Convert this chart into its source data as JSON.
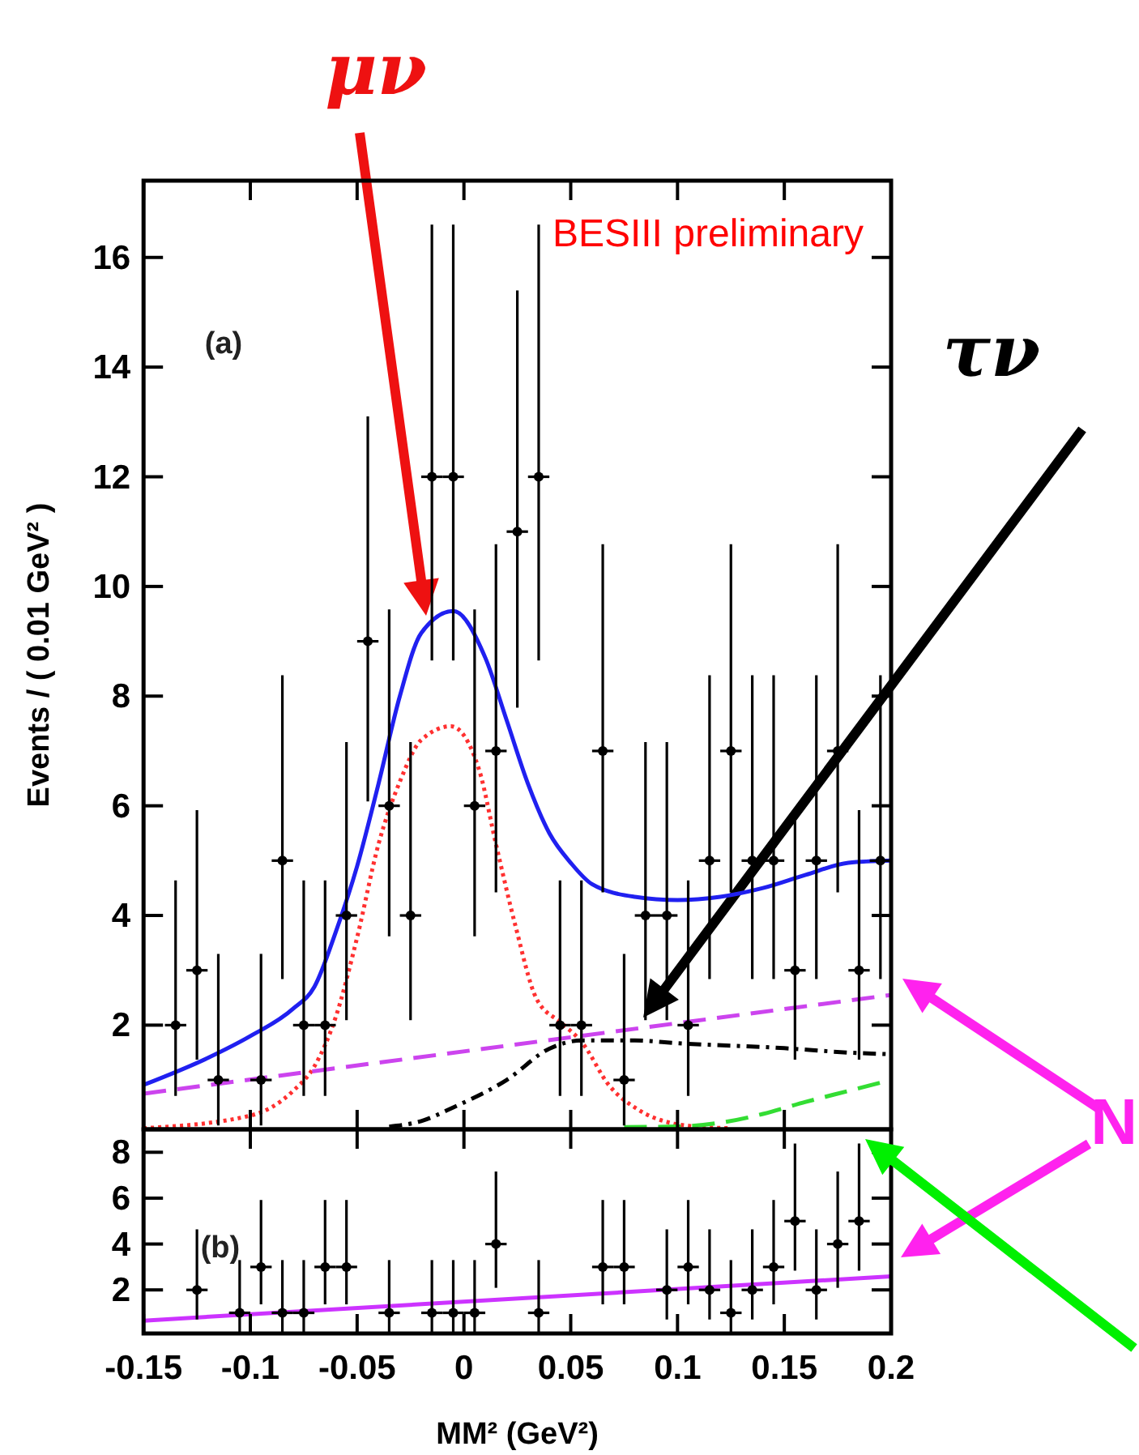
{
  "chart_data": [
    {
      "type": "scatter",
      "ylabel": "Events / ( 0.01 GeV² )",
      "xlim": [
        -0.15,
        0.2
      ],
      "xticks": [
        -0.15,
        -0.1,
        -0.05,
        0,
        0.05,
        0.1,
        0.15,
        0.2
      ],
      "ylim": [
        0.1,
        17.4
      ],
      "yticks": [
        2,
        4,
        6,
        8,
        10,
        12,
        14,
        16
      ],
      "tick_labels": "y",
      "annotations": [
        "(a)",
        "BESIII preliminary",
        "μν",
        "τν",
        "N"
      ],
      "series": [
        {
          "type": "line",
          "color": "#2020f0",
          "line_style": "solid",
          "x": [
            -0.15,
            -0.12,
            -0.1,
            -0.08,
            -0.07,
            -0.06,
            -0.05,
            -0.04,
            -0.03,
            -0.02,
            -0.005,
            0.01,
            0.02,
            0.03,
            0.04,
            0.05,
            0.06,
            0.08,
            0.1,
            0.12,
            0.14,
            0.16,
            0.18,
            0.2
          ],
          "values": [
            0.91,
            1.4,
            1.8,
            2.3,
            2.7,
            3.7,
            4.9,
            6.4,
            8.0,
            9.15,
            9.55,
            8.7,
            7.56,
            6.4,
            5.5,
            4.96,
            4.57,
            4.34,
            4.28,
            4.34,
            4.5,
            4.74,
            4.96,
            5.0
          ]
        },
        {
          "type": "line",
          "color": "#ff3030",
          "line_style": "dotted",
          "x": [
            -0.15,
            -0.1,
            -0.08,
            -0.07,
            -0.06,
            -0.05,
            -0.04,
            -0.03,
            -0.02,
            -0.006,
            0.007,
            0.015,
            0.024,
            0.034,
            0.046,
            0.055,
            0.068,
            0.082,
            0.106,
            0.125
          ],
          "values": [
            0.12,
            0.35,
            0.8,
            1.25,
            2.15,
            3.6,
            5.3,
            6.44,
            7.2,
            7.45,
            6.67,
            5.3,
            3.83,
            2.48,
            2.03,
            1.7,
            0.9,
            0.45,
            0.16,
            0.12
          ]
        },
        {
          "type": "line",
          "color": "#000000",
          "line_style": "dashdot",
          "x": [
            -0.035,
            -0.02,
            -0.005,
            0.02,
            0.04,
            0.055,
            0.08,
            0.1,
            0.15,
            0.18,
            0.2
          ],
          "values": [
            0.15,
            0.25,
            0.5,
            1.0,
            1.57,
            1.72,
            1.72,
            1.67,
            1.58,
            1.5,
            1.47
          ]
        },
        {
          "type": "line",
          "color": "#cc44ee",
          "line_style": "dashed",
          "x": [
            -0.15,
            0.2
          ],
          "values": [
            0.75,
            2.55
          ]
        },
        {
          "type": "line",
          "color": "#33dd33",
          "line_style": "dashed",
          "x": [
            0.075,
            0.1,
            0.12,
            0.14,
            0.16,
            0.18,
            0.2
          ],
          "values": [
            0.14,
            0.15,
            0.22,
            0.38,
            0.6,
            0.8,
            1.0
          ]
        },
        {
          "type": "scatter",
          "color": "#000000",
          "marker": "circle",
          "x": [
            -0.135,
            -0.125,
            -0.115,
            -0.095,
            -0.085,
            -0.075,
            -0.065,
            -0.055,
            -0.045,
            -0.035,
            -0.025,
            -0.015,
            -0.005,
            0.005,
            0.015,
            0.025,
            0.035,
            0.045,
            0.055,
            0.065,
            0.075,
            0.085,
            0.095,
            0.105,
            0.115,
            0.125,
            0.135,
            0.145,
            0.155,
            0.165,
            0.175,
            0.185,
            0.195
          ],
          "values": [
            2,
            3,
            1,
            1,
            5,
            2,
            2,
            4,
            9,
            6,
            4,
            12,
            12,
            6,
            7,
            11,
            12,
            2,
            2,
            7,
            1,
            4,
            4,
            2,
            5,
            7,
            5,
            5,
            3,
            5,
            7,
            3,
            5
          ],
          "errors": [
            [
              0.71,
              4.64
            ],
            [
              1.37,
              5.92
            ],
            [
              0.17,
              3.3
            ],
            [
              0.17,
              3.3
            ],
            [
              2.84,
              8.38
            ],
            [
              0.71,
              4.64
            ],
            [
              0.71,
              4.64
            ],
            [
              2.09,
              7.16
            ],
            [
              6.08,
              13.1
            ],
            [
              3.62,
              9.58
            ],
            [
              2.09,
              7.16
            ],
            [
              8.65,
              16.6
            ],
            [
              8.65,
              16.6
            ],
            [
              3.62,
              9.58
            ],
            [
              4.42,
              10.77
            ],
            [
              7.79,
              15.4
            ],
            [
              8.65,
              16.6
            ],
            [
              0.71,
              4.64
            ],
            [
              0.71,
              4.64
            ],
            [
              4.42,
              10.77
            ],
            [
              0.17,
              3.3
            ],
            [
              2.09,
              7.16
            ],
            [
              2.09,
              7.16
            ],
            [
              0.71,
              4.64
            ],
            [
              2.84,
              8.38
            ],
            [
              4.42,
              10.77
            ],
            [
              2.84,
              8.38
            ],
            [
              2.84,
              8.38
            ],
            [
              1.37,
              5.92
            ],
            [
              2.84,
              8.38
            ],
            [
              4.42,
              10.77
            ],
            [
              1.37,
              5.92
            ],
            [
              2.84,
              8.38
            ]
          ],
          "xerrors": [
            0.005,
            0.005,
            0.005,
            0.005,
            0.005,
            0.005,
            0.005,
            0.005,
            0.005,
            0.005,
            0.005,
            0.005,
            0.005,
            0.005,
            0.005,
            0.005,
            0.005,
            0.005,
            0.005,
            0.005,
            0.005,
            0.005,
            0.005,
            0.005,
            0.005,
            0.005,
            0.005,
            0.005,
            0.005,
            0.005,
            0.005,
            0.005,
            0.005
          ]
        }
      ]
    },
    {
      "type": "scatter",
      "xlabel": "MM² (GeV²)",
      "xlim": [
        -0.15,
        0.2
      ],
      "xticks": [
        -0.15,
        -0.1,
        -0.05,
        0,
        0.05,
        0.1,
        0.15,
        0.2
      ],
      "ylim": [
        0.1,
        9
      ],
      "yticks": [
        2,
        4,
        6,
        8
      ],
      "annotations": [
        "(b)"
      ],
      "series": [
        {
          "type": "line",
          "color": "#cc33ff",
          "line_style": "solid",
          "x": [
            -0.15,
            0.2
          ],
          "values": [
            0.66,
            2.59
          ]
        },
        {
          "type": "scatter",
          "color": "#000000",
          "marker": "circle",
          "x": [
            -0.125,
            -0.105,
            -0.095,
            -0.085,
            -0.075,
            -0.065,
            -0.055,
            -0.035,
            -0.015,
            -0.005,
            0.005,
            0.015,
            0.035,
            0.065,
            0.075,
            0.095,
            0.105,
            0.115,
            0.125,
            0.135,
            0.145,
            0.155,
            0.165,
            0.175,
            0.185
          ],
          "values": [
            2,
            1,
            3,
            1,
            1,
            3,
            3,
            1,
            1,
            1,
            1,
            4,
            1,
            3,
            3,
            2,
            3,
            2,
            1,
            2,
            3,
            5,
            2,
            4,
            5
          ],
          "errors": [
            [
              0.71,
              4.64
            ],
            [
              0.17,
              3.3
            ],
            [
              1.37,
              5.92
            ],
            [
              0.17,
              3.3
            ],
            [
              0.17,
              3.3
            ],
            [
              1.37,
              5.92
            ],
            [
              1.37,
              5.92
            ],
            [
              0.17,
              3.3
            ],
            [
              0.17,
              3.3
            ],
            [
              0.17,
              3.3
            ],
            [
              0.17,
              3.3
            ],
            [
              2.09,
              7.16
            ],
            [
              0.17,
              3.3
            ],
            [
              1.37,
              5.92
            ],
            [
              1.37,
              5.92
            ],
            [
              0.71,
              4.64
            ],
            [
              1.37,
              5.92
            ],
            [
              0.71,
              4.64
            ],
            [
              0.17,
              3.3
            ],
            [
              0.71,
              4.64
            ],
            [
              1.37,
              5.92
            ],
            [
              2.84,
              8.38
            ],
            [
              0.71,
              4.64
            ],
            [
              2.09,
              7.16
            ],
            [
              2.84,
              8.38
            ]
          ],
          "xerrors": [
            0.005,
            0.005,
            0.005,
            0.005,
            0.005,
            0.005,
            0.005,
            0.005,
            0.005,
            0.005,
            0.005,
            0.005,
            0.005,
            0.005,
            0.005,
            0.005,
            0.005,
            0.005,
            0.005,
            0.005,
            0.005,
            0.005,
            0.005,
            0.005,
            0.005
          ]
        }
      ]
    }
  ]
}
